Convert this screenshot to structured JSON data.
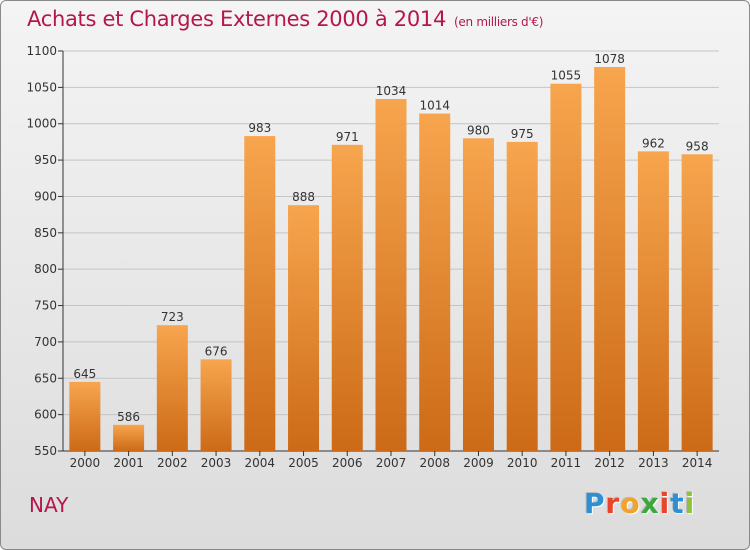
{
  "title": "Achats et Charges Externes 2000 à 2014",
  "unit": "(en milliers d'€)",
  "commune": "NAY",
  "logo": {
    "text": "Proxiti",
    "letters": [
      {
        "char": "P",
        "color": "#2e8fd4"
      },
      {
        "char": "r",
        "color": "#e8452c"
      },
      {
        "char": "o",
        "color": "#f2a32b"
      },
      {
        "char": "x",
        "color": "#3aa83a"
      },
      {
        "char": "i",
        "color": "#e8452c"
      },
      {
        "char": "t",
        "color": "#2e8fd4"
      },
      {
        "char": "i",
        "color": "#8fc13c"
      }
    ]
  },
  "colors": {
    "title": "#b5174d",
    "bar_light": "#f7a54e",
    "bar_dark": "#cc6a17",
    "grid": "#c4c4c4",
    "axis": "#333333"
  },
  "chart_data": {
    "type": "bar",
    "title": "Achats et Charges Externes 2000 à 2014",
    "subtitle": "(en milliers d'€)",
    "xlabel": "",
    "ylabel": "",
    "categories": [
      "2000",
      "2001",
      "2002",
      "2003",
      "2004",
      "2005",
      "2006",
      "2007",
      "2008",
      "2009",
      "2010",
      "2011",
      "2012",
      "2013",
      "2014"
    ],
    "values": [
      645,
      586,
      723,
      676,
      983,
      888,
      971,
      1034,
      1014,
      980,
      975,
      1055,
      1078,
      962,
      958
    ],
    "ylim": [
      550,
      1100
    ],
    "yticks": [
      550,
      600,
      650,
      700,
      750,
      800,
      850,
      900,
      950,
      1000,
      1050,
      1100
    ],
    "grid": true,
    "data_labels": true
  }
}
